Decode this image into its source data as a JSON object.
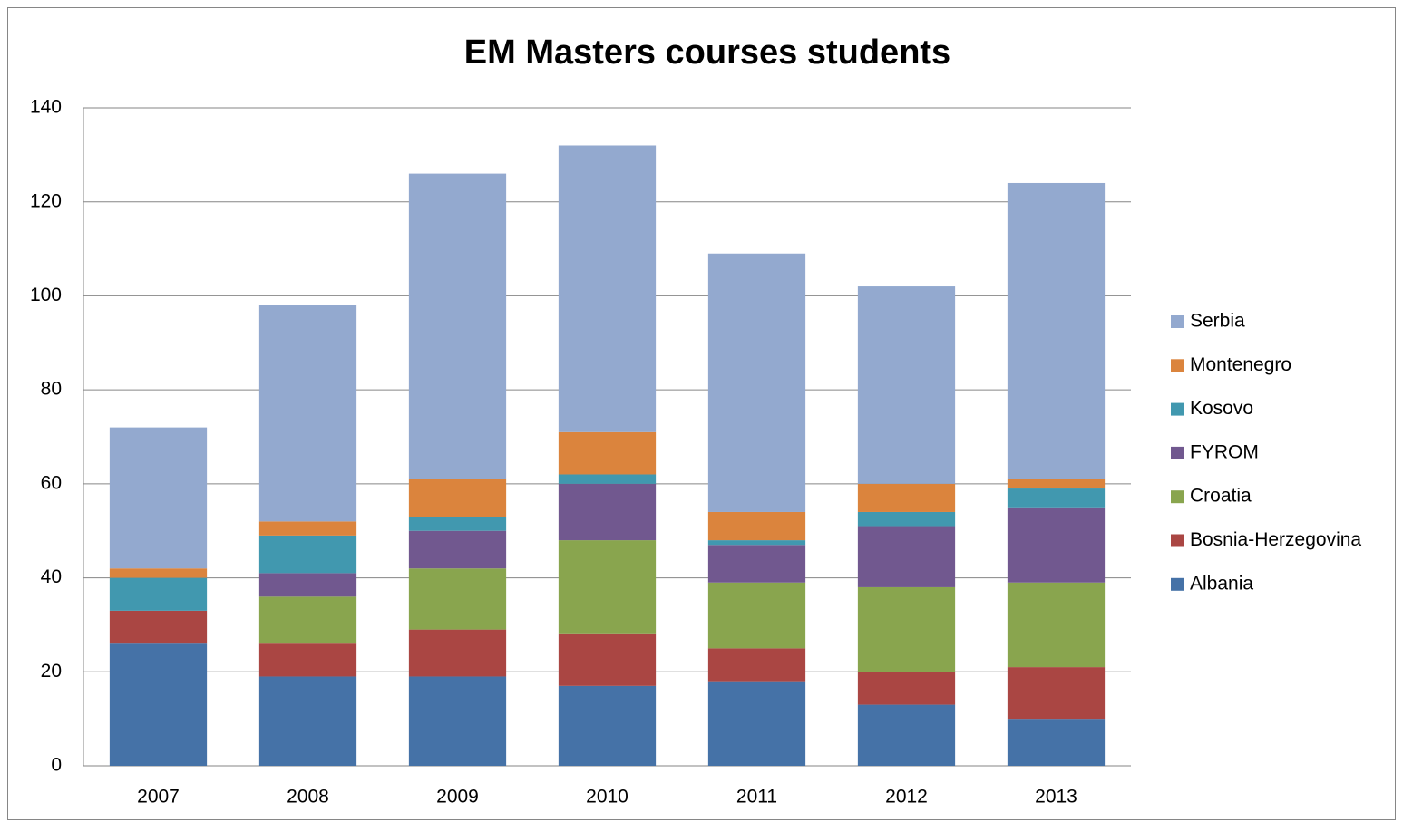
{
  "chart_data": {
    "type": "stacked_bar",
    "title": "EM Masters courses students",
    "categories": [
      "2007",
      "2008",
      "2009",
      "2010",
      "2011",
      "2012",
      "2013"
    ],
    "series": [
      {
        "name": "Albania",
        "color": "#4572a7",
        "values": [
          26,
          19,
          19,
          17,
          18,
          13,
          10
        ]
      },
      {
        "name": "Bosnia-Herzegovina",
        "color": "#aa4643",
        "values": [
          7,
          7,
          10,
          11,
          7,
          7,
          11
        ]
      },
      {
        "name": "Croatia",
        "color": "#89a54e",
        "values": [
          0,
          10,
          13,
          20,
          14,
          18,
          18
        ]
      },
      {
        "name": "FYROM",
        "color": "#71588f",
        "values": [
          0,
          5,
          8,
          12,
          8,
          13,
          16
        ]
      },
      {
        "name": "Kosovo",
        "color": "#4198af",
        "values": [
          7,
          8,
          3,
          2,
          1,
          3,
          4
        ]
      },
      {
        "name": "Montenegro",
        "color": "#db843d",
        "values": [
          2,
          3,
          8,
          9,
          6,
          6,
          2
        ]
      },
      {
        "name": "Serbia",
        "color": "#93a9cf",
        "values": [
          30,
          46,
          65,
          61,
          55,
          42,
          63
        ]
      }
    ],
    "ylim": [
      0,
      140
    ],
    "yticks": [
      0,
      20,
      40,
      60,
      80,
      100,
      120,
      140
    ],
    "grid": true,
    "legend": "right"
  }
}
